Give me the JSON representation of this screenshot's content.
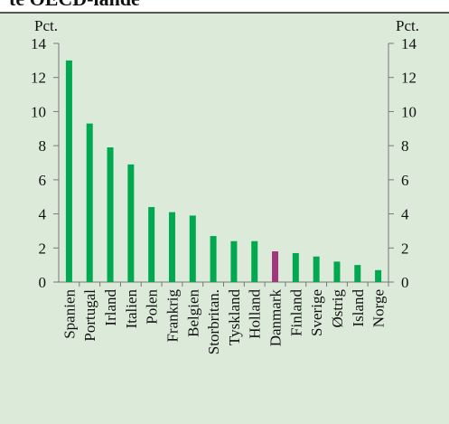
{
  "chart_data": {
    "type": "bar",
    "title": "te OECD-lande",
    "y_label": "Pct.",
    "y2_label": "Pct.",
    "categories": [
      "Spanien",
      "Portugal",
      "Irland",
      "Italien",
      "Polen",
      "Frankrig",
      "Belgien",
      "Storbritan.",
      "Tyskland",
      "Holland",
      "Danmark",
      "Finland",
      "Sverige",
      "Østrig",
      "Island",
      "Norge"
    ],
    "values": [
      13,
      9.3,
      7.9,
      6.9,
      4.4,
      4.1,
      3.9,
      2.7,
      2.4,
      2.4,
      1.8,
      1.7,
      1.5,
      1.2,
      1.0,
      0.7
    ],
    "colors": [
      "#00a94f",
      "#00a94f",
      "#00a94f",
      "#00a94f",
      "#00a94f",
      "#00a94f",
      "#00a94f",
      "#00a94f",
      "#00a94f",
      "#00a94f",
      "#a0367e",
      "#00a94f",
      "#00a94f",
      "#00a94f",
      "#00a94f",
      "#00a94f"
    ],
    "ylim": [
      0,
      14
    ],
    "yticks": [
      0,
      2,
      4,
      6,
      8,
      10,
      12,
      14
    ],
    "y2lim": [
      0,
      14
    ],
    "y2ticks": [
      0,
      2,
      4,
      6,
      8,
      10,
      12,
      14
    ]
  }
}
